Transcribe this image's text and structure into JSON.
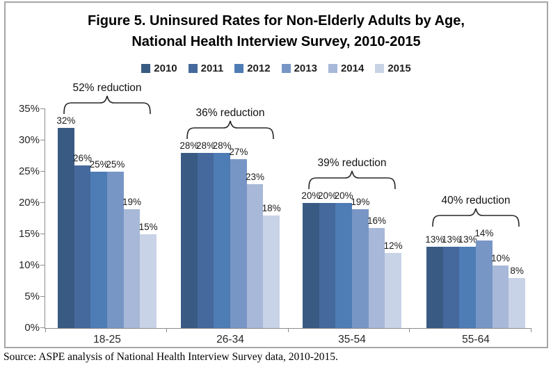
{
  "title": {
    "line1": "Figure 5. Uninsured Rates for Non-Elderly Adults by Age,",
    "line2": "National Health Interview Survey, 2010-2015"
  },
  "source_note": "Source: ASPE analysis of National Health Interview Survey data, 2010-2015.",
  "colors": {
    "frame_border": "#A6A6A6",
    "axis": "#8C8C8C",
    "title_text": "#000000",
    "label_text": "#1a1a1a"
  },
  "chart_data": {
    "type": "bar",
    "title": "Figure 5. Uninsured Rates for Non-Elderly Adults by Age, National Health Interview Survey, 2010-2015",
    "categories": [
      "18-25",
      "26-34",
      "35-54",
      "55-64"
    ],
    "series": [
      {
        "name": "2010",
        "color": "#395B83",
        "values": [
          32,
          28,
          20,
          13
        ]
      },
      {
        "name": "2011",
        "color": "#45699C",
        "values": [
          26,
          28,
          20,
          13
        ]
      },
      {
        "name": "2012",
        "color": "#4E7CB5",
        "values": [
          25,
          28,
          20,
          13
        ]
      },
      {
        "name": "2013",
        "color": "#7896C5",
        "values": [
          25,
          27,
          19,
          14
        ]
      },
      {
        "name": "2014",
        "color": "#A8B8D8",
        "values": [
          19,
          23,
          16,
          10
        ]
      },
      {
        "name": "2015",
        "color": "#C9D3E7",
        "values": [
          15,
          18,
          12,
          8
        ]
      }
    ],
    "data_label_format": "{value}%",
    "annotations": [
      {
        "category": "18-25",
        "text": "52% reduction"
      },
      {
        "category": "26-34",
        "text": "36% reduction"
      },
      {
        "category": "35-54",
        "text": "39% reduction"
      },
      {
        "category": "55-64",
        "text": "40% reduction"
      }
    ],
    "xlabel": "",
    "ylabel": "",
    "ylim": [
      0,
      35
    ],
    "yticks": [
      "0%",
      "5%",
      "10%",
      "15%",
      "20%",
      "25%",
      "30%",
      "35%"
    ],
    "grid": false,
    "legend_position": "top"
  }
}
